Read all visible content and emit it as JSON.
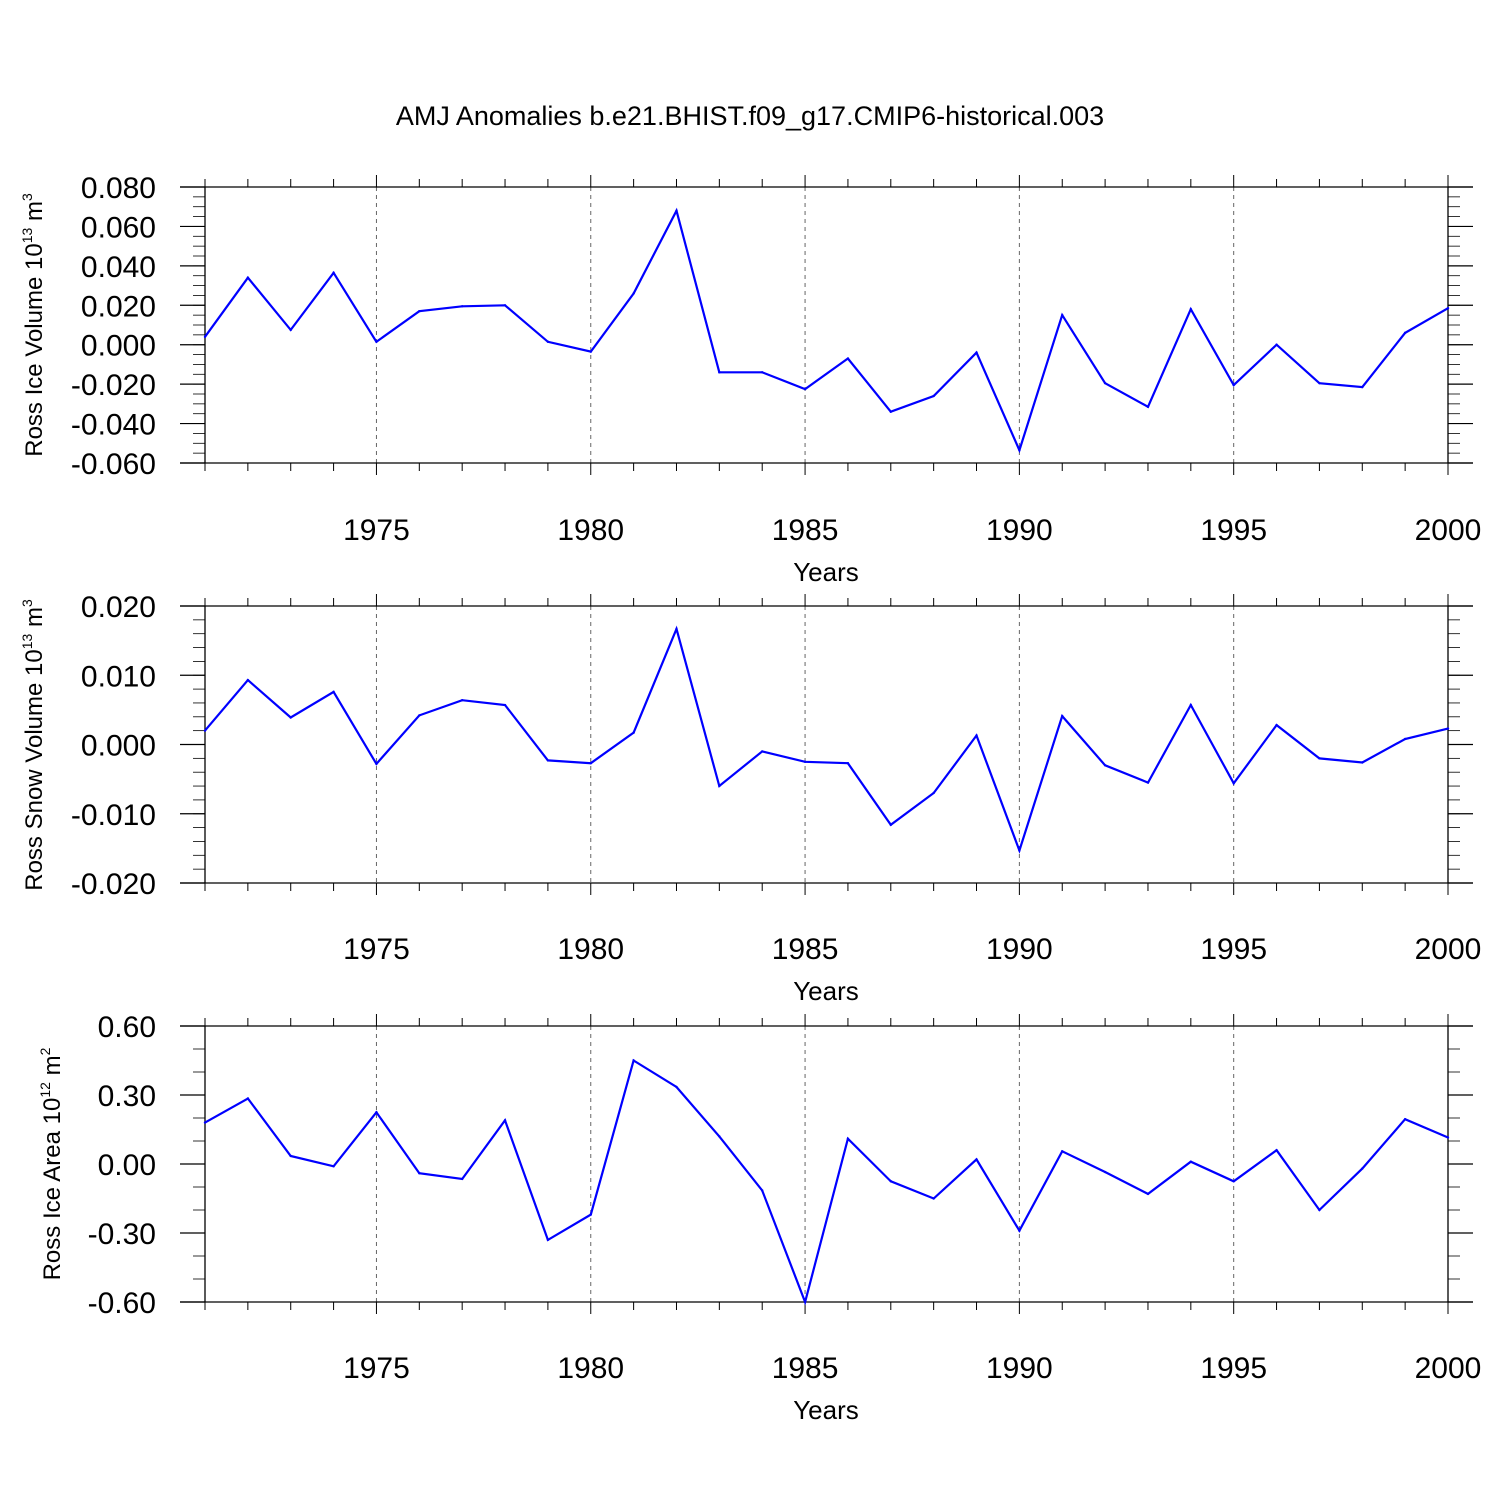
{
  "title": "AMJ Anomalies b.e21.BHIST.f09_g17.CMIP6-historical.003",
  "colors": {
    "line": "#0000ff",
    "axis": "#000000",
    "grid": "#000000"
  },
  "chart_data": [
    {
      "type": "line",
      "name": "ross-ice-volume",
      "ylabel_main": "Ross Ice Volume 10",
      "ylabel_exp": "13",
      "ylabel_unit": " m",
      "ylabel_unit_exp": "3",
      "xlabel": "Years",
      "xlim": [
        1971,
        2000
      ],
      "ylim": [
        -0.06,
        0.08
      ],
      "x_ticks": [
        1975,
        1980,
        1985,
        1990,
        1995,
        2000
      ],
      "x_tick_labels": [
        "1975",
        "1980",
        "1985",
        "1990",
        "1995",
        "2000"
      ],
      "y_ticks": [
        -0.06,
        -0.04,
        -0.02,
        0.0,
        0.02,
        0.04,
        0.06,
        0.08
      ],
      "y_tick_labels": [
        "-0.060",
        "-0.040",
        "-0.020",
        "0.000",
        "0.020",
        "0.040",
        "0.060",
        "0.080"
      ],
      "y_minor_step": 0.005,
      "x": [
        1971,
        1972,
        1973,
        1974,
        1975,
        1976,
        1977,
        1978,
        1979,
        1980,
        1981,
        1982,
        1983,
        1984,
        1985,
        1986,
        1987,
        1988,
        1989,
        1990,
        1991,
        1992,
        1993,
        1994,
        1995,
        1996,
        1997,
        1998,
        1999,
        2000
      ],
      "values": [
        0.004,
        0.034,
        0.0075,
        0.0365,
        0.0015,
        0.017,
        0.0195,
        0.02,
        0.0015,
        -0.0035,
        0.026,
        0.068,
        -0.014,
        -0.014,
        -0.0225,
        -0.007,
        -0.034,
        -0.026,
        -0.004,
        -0.0535,
        0.015,
        -0.0195,
        -0.0315,
        0.018,
        -0.0205,
        0.0,
        -0.0195,
        -0.0215,
        0.006,
        0.0185
      ],
      "series_name": "Ross Ice Volume"
    },
    {
      "type": "line",
      "name": "ross-snow-volume",
      "ylabel_main": "Ross Snow Volume 10",
      "ylabel_exp": "13",
      "ylabel_unit": " m",
      "ylabel_unit_exp": "3",
      "xlabel": "Years",
      "xlim": [
        1971,
        2000
      ],
      "ylim": [
        -0.02,
        0.02
      ],
      "x_ticks": [
        1975,
        1980,
        1985,
        1990,
        1995,
        2000
      ],
      "x_tick_labels": [
        "1975",
        "1980",
        "1985",
        "1990",
        "1995",
        "2000"
      ],
      "y_ticks": [
        -0.02,
        -0.01,
        0.0,
        0.01,
        0.02
      ],
      "y_tick_labels": [
        "-0.020",
        "-0.010",
        "0.000",
        "0.010",
        "0.020"
      ],
      "y_minor_step": 0.002,
      "x": [
        1971,
        1972,
        1973,
        1974,
        1975,
        1976,
        1977,
        1978,
        1979,
        1980,
        1981,
        1982,
        1983,
        1984,
        1985,
        1986,
        1987,
        1988,
        1989,
        1990,
        1991,
        1992,
        1993,
        1994,
        1995,
        1996,
        1997,
        1998,
        1999,
        2000
      ],
      "values": [
        0.002,
        0.0093,
        0.0039,
        0.0076,
        -0.0028,
        0.0042,
        0.0064,
        0.0057,
        -0.0023,
        -0.0027,
        0.0017,
        0.0167,
        -0.006,
        -0.001,
        -0.0025,
        -0.0027,
        -0.0116,
        -0.007,
        0.0013,
        -0.0153,
        0.0041,
        -0.003,
        -0.0055,
        0.0057,
        -0.0056,
        0.0028,
        -0.002,
        -0.0026,
        0.0008,
        0.0023
      ],
      "series_name": "Ross Snow Volume"
    },
    {
      "type": "line",
      "name": "ross-ice-area",
      "ylabel_main": "Ross Ice Area 10",
      "ylabel_exp": "12",
      "ylabel_unit": " m",
      "ylabel_unit_exp": "2",
      "xlabel": "Years",
      "xlim": [
        1971,
        2000
      ],
      "ylim": [
        -0.6,
        0.6
      ],
      "x_ticks": [
        1975,
        1980,
        1985,
        1990,
        1995,
        2000
      ],
      "x_tick_labels": [
        "1975",
        "1980",
        "1985",
        "1990",
        "1995",
        "2000"
      ],
      "y_ticks": [
        -0.6,
        -0.3,
        0.0,
        0.3,
        0.6
      ],
      "y_tick_labels": [
        "-0.60",
        "-0.30",
        "0.00",
        "0.30",
        "0.60"
      ],
      "y_minor_step": 0.1,
      "x": [
        1971,
        1972,
        1973,
        1974,
        1975,
        1976,
        1977,
        1978,
        1979,
        1980,
        1981,
        1982,
        1983,
        1984,
        1985,
        1986,
        1987,
        1988,
        1989,
        1990,
        1991,
        1992,
        1993,
        1994,
        1995,
        1996,
        1997,
        1998,
        1999,
        2000
      ],
      "values": [
        0.18,
        0.285,
        0.035,
        -0.01,
        0.225,
        -0.04,
        -0.065,
        0.19,
        -0.33,
        -0.22,
        0.45,
        0.335,
        0.12,
        -0.115,
        -0.6,
        0.11,
        -0.075,
        -0.15,
        0.02,
        -0.29,
        0.055,
        -0.035,
        -0.13,
        0.01,
        -0.075,
        0.06,
        -0.2,
        -0.02,
        0.195,
        0.115
      ],
      "series_name": "Ross Ice Area"
    }
  ]
}
